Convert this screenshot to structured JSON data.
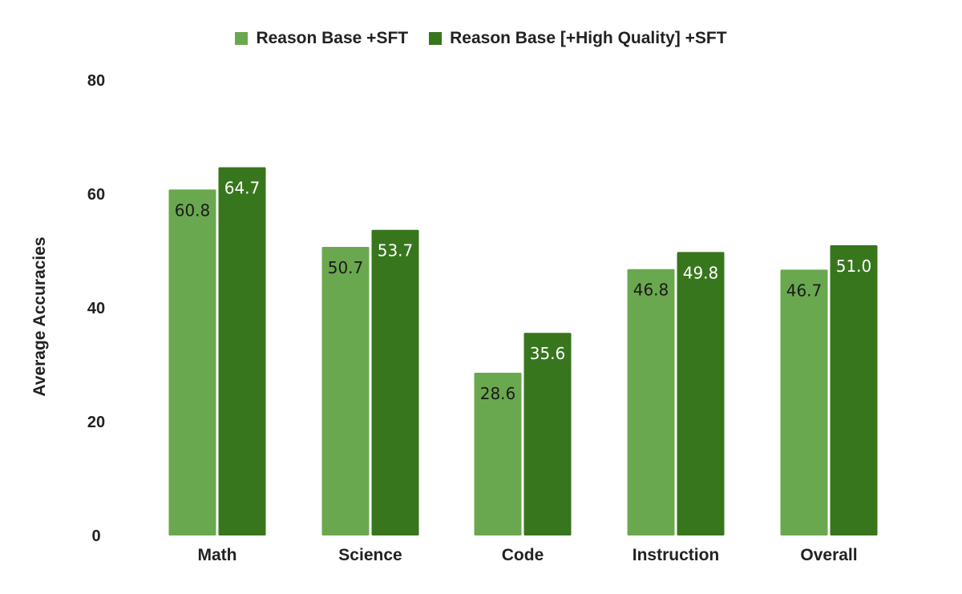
{
  "chart_data": {
    "type": "bar",
    "categories": [
      "Math",
      "Science",
      "Code",
      "Instruction",
      "Overall"
    ],
    "series": [
      {
        "name": "Reason Base +SFT",
        "color": "#6aa84f",
        "values": [
          60.8,
          50.7,
          28.6,
          46.8,
          46.7
        ],
        "labels": [
          "60.8",
          "50.7",
          "28.6",
          "46.8",
          "46.7"
        ]
      },
      {
        "name": "Reason Base [+High Quality] +SFT",
        "color": "#38761d",
        "values": [
          64.7,
          53.7,
          35.6,
          49.8,
          51.0
        ],
        "labels": [
          "64.7",
          "53.7",
          "35.6",
          "49.8",
          "51.0"
        ]
      }
    ],
    "ylabel": "Average Accuracies",
    "xlabel": "",
    "ylim": [
      0,
      80
    ],
    "yticks": [
      0,
      20,
      40,
      60,
      80
    ],
    "grid": false,
    "legend_position": "top-center"
  }
}
